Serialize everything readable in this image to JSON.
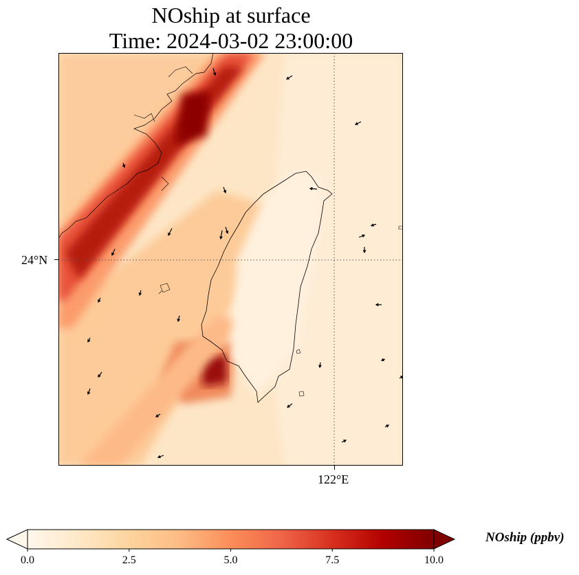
{
  "title": {
    "line1": "NOship at surface",
    "line2": "Time: 2024-03-02 23:00:00"
  },
  "map": {
    "lat_labels": [
      "24°N"
    ],
    "lon_labels": [
      "122°E"
    ],
    "gridlines": "dotted",
    "coastline": "Taiwan and Fujian coast",
    "wind_vectors": "shown as black arrows"
  },
  "colorbar": {
    "label": "NOship (ppbv)",
    "ticks": [
      "0.0",
      "2.5",
      "5.0",
      "7.5",
      "10.0"
    ],
    "min": 0.0,
    "max": 10.0,
    "extend": "both",
    "colormap": "OrRd",
    "colors": [
      "#fff7ec",
      "#fee8c8",
      "#fdd49e",
      "#fdbb84",
      "#fc8d59",
      "#ef6548",
      "#d7301f",
      "#b30000",
      "#7f0000"
    ]
  }
}
